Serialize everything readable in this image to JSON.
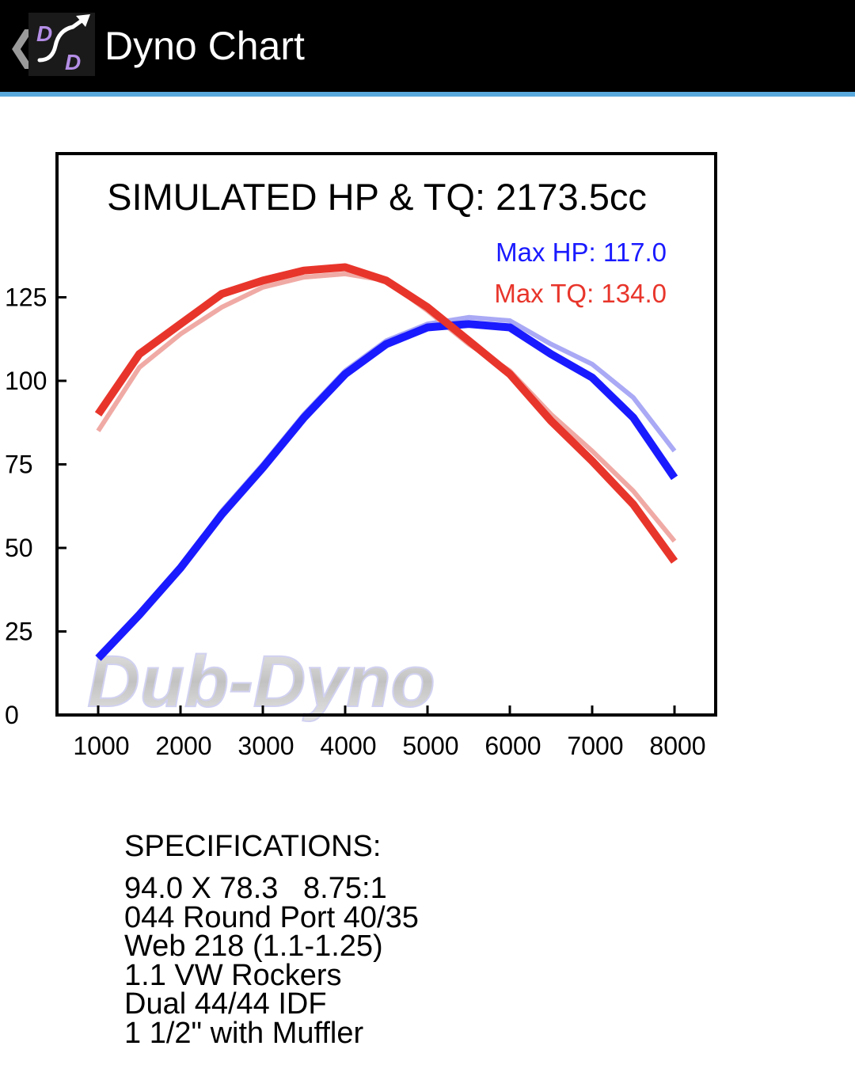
{
  "app_bar": {
    "title": "Dyno Chart",
    "back_icon": "chevron-left-icon",
    "app_icon": "dub-dyno-logo-icon",
    "logo_letters": [
      "D",
      "D"
    ],
    "colors": {
      "background": "#000000",
      "accent_line": "#5aa9dc"
    }
  },
  "chart_data": {
    "type": "line",
    "title": "SIMULATED HP & TQ: 2173.5cc",
    "x": [
      1000,
      1500,
      2000,
      2500,
      3000,
      3500,
      4000,
      4500,
      5000,
      5500,
      6000,
      6500,
      7000,
      7500,
      8000
    ],
    "x_ticks": [
      1000,
      2000,
      3000,
      4000,
      5000,
      6000,
      7000,
      8000
    ],
    "y_ticks": [
      0,
      25,
      50,
      75,
      100,
      125
    ],
    "xlim": [
      500,
      8500
    ],
    "ylim": [
      0,
      168
    ],
    "grid": false,
    "legend": [
      {
        "text": "Max HP: 117.0",
        "color": "#1a1aff"
      },
      {
        "text": "Max TQ: 134.0",
        "color": "#e8352b"
      }
    ],
    "watermark": "Dub-Dyno",
    "series": [
      {
        "key": "hp",
        "color": "#1a1aff",
        "weight": "bold",
        "values": [
          17,
          30,
          44,
          60,
          74,
          89,
          102,
          111,
          116,
          117,
          116,
          108,
          101,
          89,
          71
        ]
      },
      {
        "key": "tq",
        "color": "#e8352b",
        "weight": "bold",
        "values": [
          90,
          108,
          117,
          126,
          130,
          133,
          134,
          130,
          122,
          112,
          102,
          88,
          76,
          63,
          46
        ]
      },
      {
        "key": "hp_compare",
        "color": "#a9a9f5",
        "weight": "light",
        "values": [
          17,
          30,
          44,
          61,
          75,
          90,
          103,
          112,
          117,
          119,
          118,
          111,
          105,
          95,
          79
        ]
      },
      {
        "key": "tq_compare",
        "color": "#f0aaa5",
        "weight": "light",
        "values": [
          85,
          104,
          114,
          122,
          128,
          131,
          132,
          130,
          121,
          111,
          103,
          90,
          79,
          67,
          52
        ]
      }
    ]
  },
  "specs": {
    "title": "SPECIFICATIONS:",
    "lines": [
      "94.0 X 78.3   8.75:1",
      "044 Round Port 40/35",
      "Web 218 (1.1-1.25)",
      "1.1 VW Rockers",
      "Dual 44/44 IDF",
      "1 1/2\" with Muffler"
    ]
  }
}
